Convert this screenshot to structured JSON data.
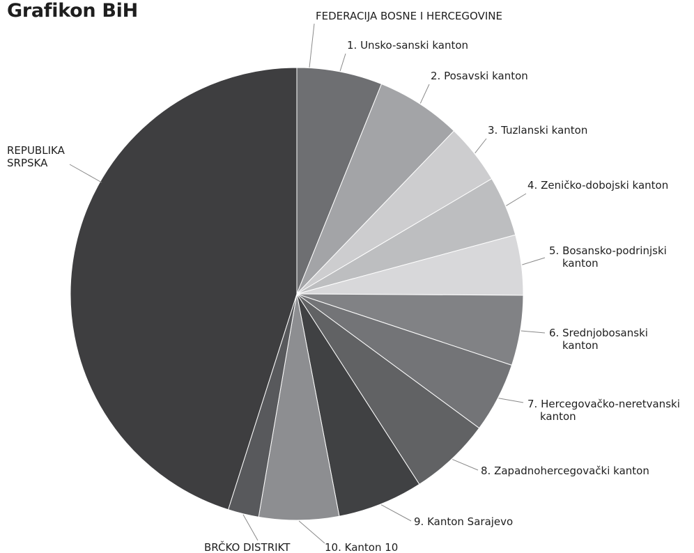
{
  "chart_data": {
    "type": "pie",
    "title": "Grafikon BiH",
    "group_labels": [
      "FEDERACIJA BOSNE I HERCEGOVINE"
    ],
    "slices": [
      {
        "label": "1. Unsko-sanski kanton",
        "value": 6.1,
        "color": "#6e6f72"
      },
      {
        "label": "2. Posavski kanton",
        "value": 6.1,
        "color": "#a3a4a7"
      },
      {
        "label": "3. Tuzlanski kanton",
        "value": 4.3,
        "color": "#cdcdcf"
      },
      {
        "label": "4. Zeničko-dobojski kanton",
        "value": 4.3,
        "color": "#bdbec0"
      },
      {
        "label": "5. Bosansko-podrinjski kanton",
        "value": 4.3,
        "color": "#d8d8da"
      },
      {
        "label": "6. Srednjobosanski kanton",
        "value": 5.0,
        "color": "#818285"
      },
      {
        "label": "7. Hercegovačko-neretvanski kanton",
        "value": 5.0,
        "color": "#737477"
      },
      {
        "label": "8. Zapadnohercegovački kanton",
        "value": 5.8,
        "color": "#616264"
      },
      {
        "label": "9. Kanton Sarajevo",
        "value": 6.1,
        "color": "#404143"
      },
      {
        "label": "10. Kanton 10",
        "value": 5.7,
        "color": "#8d8e91"
      },
      {
        "label": "BRČKO DISTRIKT",
        "value": 2.2,
        "color": "#58595c"
      },
      {
        "label": "REPUBLIKA SRPSKA",
        "value": 45.1,
        "color": "#3e3e40"
      }
    ]
  }
}
